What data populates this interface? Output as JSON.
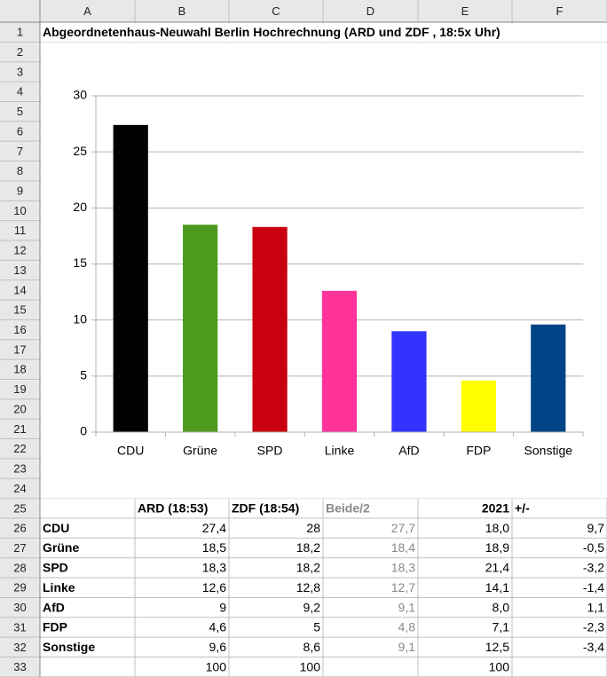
{
  "sheet": {
    "column_headers": [
      "A",
      "B",
      "C",
      "D",
      "E",
      "F"
    ],
    "row_headers": [
      "1",
      "2",
      "3",
      "4",
      "5",
      "6",
      "7",
      "8",
      "9",
      "10",
      "11",
      "12",
      "13",
      "14",
      "15",
      "16",
      "17",
      "18",
      "19",
      "20",
      "21",
      "22",
      "23",
      "24",
      "25",
      "26",
      "27",
      "28",
      "29",
      "30",
      "31",
      "32",
      "33"
    ],
    "title": "Abgeordnetenhaus-Neuwahl Berlin Hochrechnung (ARD und ZDF , 18:5x Uhr)"
  },
  "chart_data": {
    "type": "bar",
    "categories": [
      "CDU",
      "Grüne",
      "SPD",
      "Linke",
      "AfD",
      "FDP",
      "Sonstige"
    ],
    "values": [
      27.4,
      18.5,
      18.3,
      12.6,
      9,
      4.6,
      9.6
    ],
    "colors": [
      "#000000",
      "#4e9a1f",
      "#c8000f",
      "#ff3399",
      "#3333ff",
      "#ffff00",
      "#004586"
    ],
    "ylim": [
      0,
      30
    ],
    "yticks": [
      0,
      5,
      10,
      15,
      20,
      25,
      30
    ],
    "grid": true
  },
  "table": {
    "header": {
      "ard": "ARD (18:53)",
      "zdf": "ZDF (18:54)",
      "beide": "Beide/2",
      "y2021": "2021",
      "diff": "+/-"
    },
    "rows": [
      {
        "party": "CDU",
        "ard": "27,4",
        "zdf": "28",
        "beide": "27,7",
        "y2021": "18,0",
        "diff": "9,7"
      },
      {
        "party": "Grüne",
        "ard": "18,5",
        "zdf": "18,2",
        "beide": "18,4",
        "y2021": "18,9",
        "diff": "-0,5"
      },
      {
        "party": "SPD",
        "ard": "18,3",
        "zdf": "18,2",
        "beide": "18,3",
        "y2021": "21,4",
        "diff": "-3,2"
      },
      {
        "party": "Linke",
        "ard": "12,6",
        "zdf": "12,8",
        "beide": "12,7",
        "y2021": "14,1",
        "diff": "-1,4"
      },
      {
        "party": "AfD",
        "ard": "9",
        "zdf": "9,2",
        "beide": "9,1",
        "y2021": "8,0",
        "diff": "1,1"
      },
      {
        "party": "FDP",
        "ard": "4,6",
        "zdf": "5",
        "beide": "4,8",
        "y2021": "7,1",
        "diff": "-2,3"
      },
      {
        "party": "Sonstige",
        "ard": "9,6",
        "zdf": "8,6",
        "beide": "9,1",
        "y2021": "12,5",
        "diff": "-3,4"
      }
    ],
    "totals": {
      "ard": "100",
      "zdf": "100",
      "y2021": "100"
    }
  }
}
